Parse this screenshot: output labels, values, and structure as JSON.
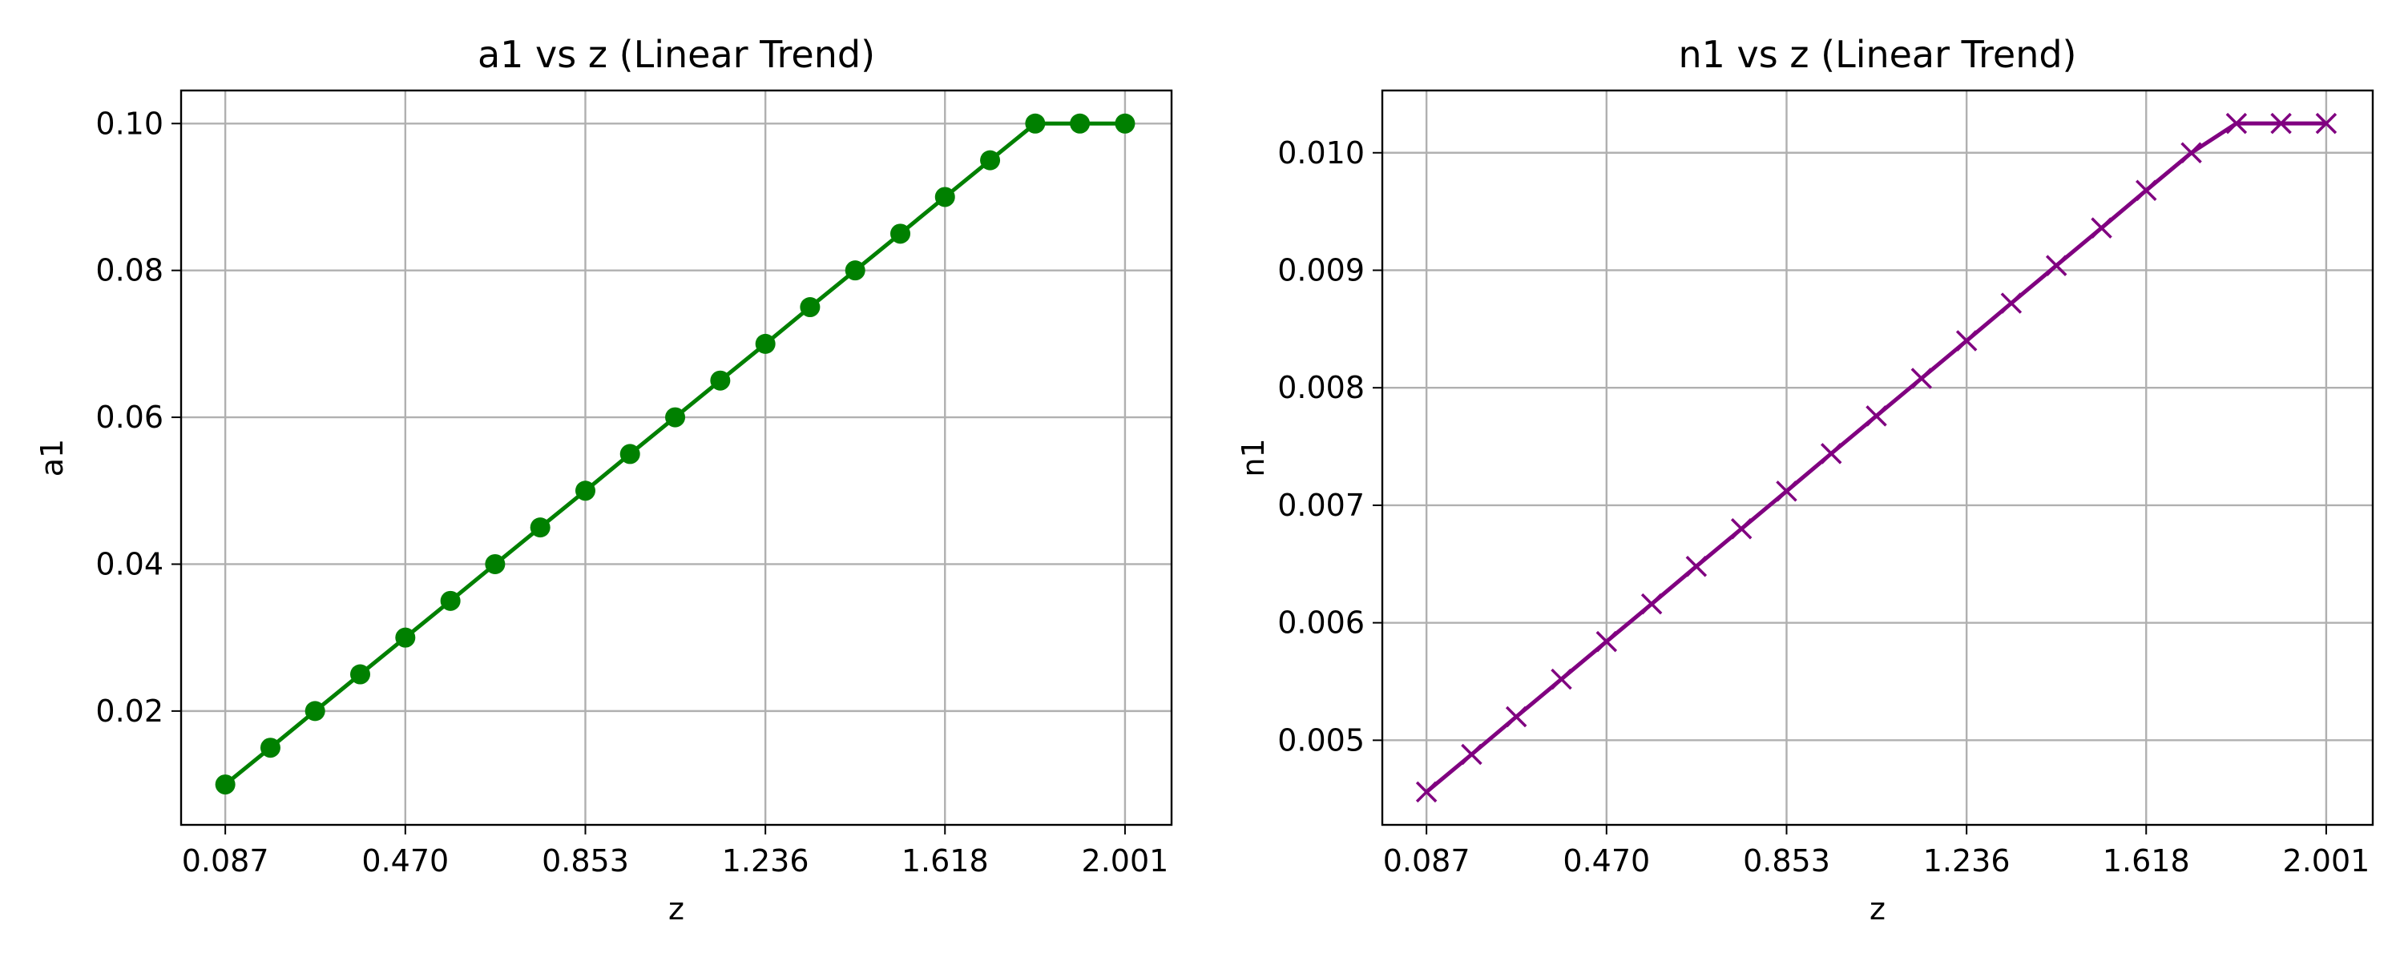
{
  "chart_data": [
    {
      "type": "line",
      "title": "a1 vs z (Linear Trend)",
      "xlabel": "z",
      "ylabel": "a1",
      "xlim": [
        -0.007,
        2.1
      ],
      "ylim": [
        0.0045,
        0.1045
      ],
      "x_ticks": [
        0.087,
        0.47,
        0.853,
        1.236,
        1.618,
        2.001
      ],
      "x_tick_labels": [
        "0.087",
        "0.470",
        "0.853",
        "1.236",
        "1.618",
        "2.001"
      ],
      "y_ticks": [
        0.02,
        0.04,
        0.06,
        0.08,
        0.1
      ],
      "y_tick_labels": [
        "0.02",
        "0.04",
        "0.06",
        "0.08",
        "0.10"
      ],
      "grid": true,
      "series": [
        {
          "color": "#008000",
          "marker": "circle",
          "x": [
            0.087,
            0.183,
            0.278,
            0.374,
            0.47,
            0.566,
            0.661,
            0.757,
            0.853,
            0.948,
            1.044,
            1.14,
            1.236,
            1.331,
            1.427,
            1.523,
            1.618,
            1.714,
            1.81,
            1.905,
            2.001
          ],
          "values": [
            0.01,
            0.015,
            0.02,
            0.025,
            0.03,
            0.035,
            0.04,
            0.045,
            0.05,
            0.055,
            0.06,
            0.065,
            0.07,
            0.075,
            0.08,
            0.085,
            0.09,
            0.095,
            0.1,
            0.1,
            0.1
          ]
        }
      ]
    },
    {
      "type": "line",
      "title": "n1 vs z (Linear Trend)",
      "xlabel": "z",
      "ylabel": "n1",
      "xlim": [
        -0.007,
        2.1
      ],
      "ylim": [
        0.00428,
        0.01053
      ],
      "x_ticks": [
        0.087,
        0.47,
        0.853,
        1.236,
        1.618,
        2.001
      ],
      "x_tick_labels": [
        "0.087",
        "0.470",
        "0.853",
        "1.236",
        "1.618",
        "2.001"
      ],
      "y_ticks": [
        0.005,
        0.006,
        0.007,
        0.008,
        0.009,
        0.01
      ],
      "y_tick_labels": [
        "0.005",
        "0.006",
        "0.007",
        "0.008",
        "0.009",
        "0.010"
      ],
      "grid": true,
      "series": [
        {
          "color": "#800080",
          "marker": "x",
          "x": [
            0.087,
            0.183,
            0.278,
            0.374,
            0.47,
            0.566,
            0.661,
            0.757,
            0.853,
            0.948,
            1.044,
            1.14,
            1.236,
            1.331,
            1.427,
            1.523,
            1.618,
            1.714,
            1.81,
            1.905,
            2.001
          ],
          "values": [
            0.00456,
            0.00488,
            0.0052,
            0.00552,
            0.00584,
            0.00616,
            0.00648,
            0.0068,
            0.00712,
            0.00744,
            0.00776,
            0.00808,
            0.0084,
            0.00872,
            0.00904,
            0.00936,
            0.00968,
            0.01,
            0.01025,
            0.01025,
            0.01025
          ]
        }
      ]
    }
  ]
}
